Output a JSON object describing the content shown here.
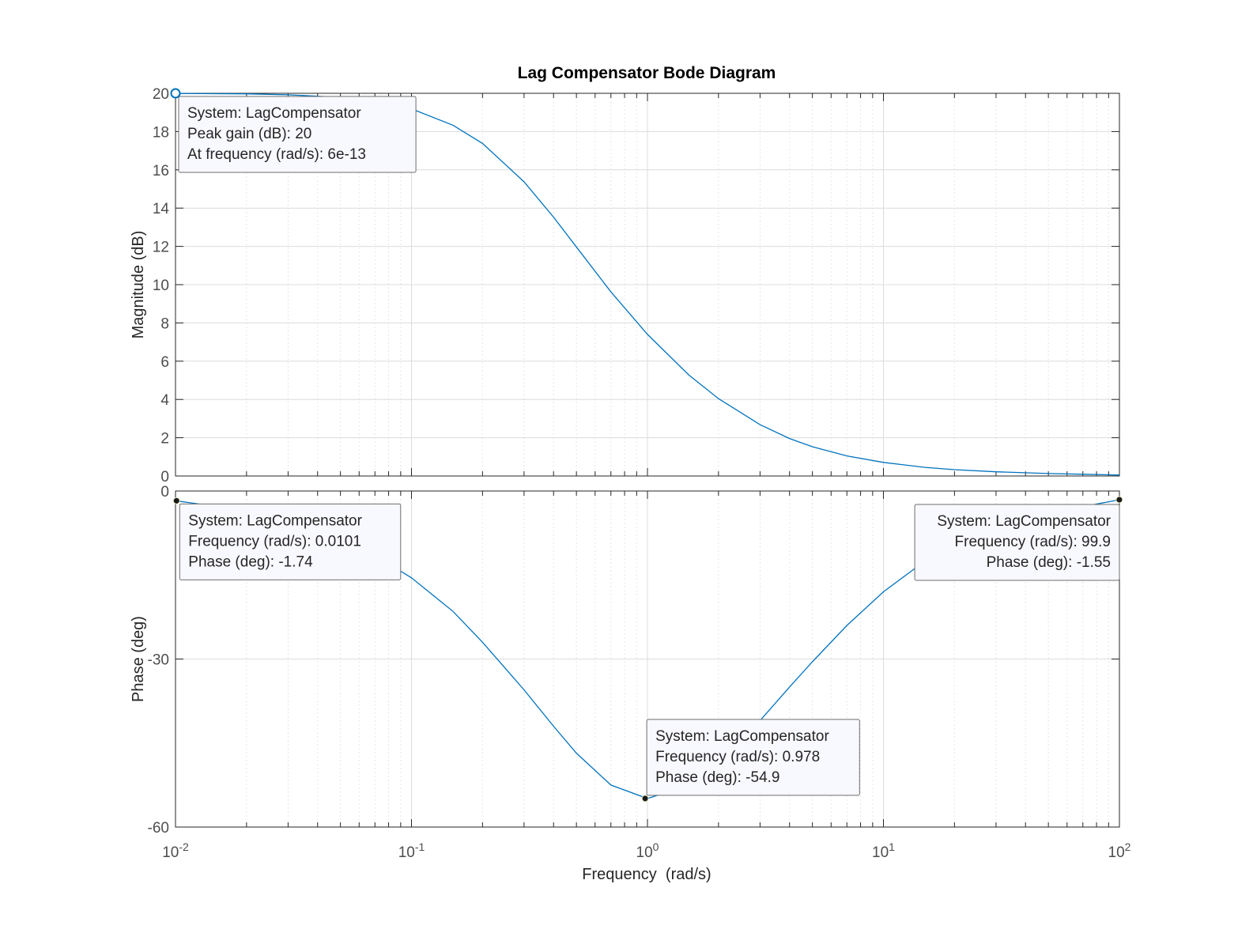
{
  "chart_data": {
    "type": "line",
    "title": "Lag Compensator Bode Diagram",
    "xlabel": "Frequency  (rad/s)",
    "xscale": "log",
    "xlim": [
      0.01,
      100
    ],
    "x_ticks": [
      {
        "base": "10",
        "exp": "-2"
      },
      {
        "base": "10",
        "exp": "-1"
      },
      {
        "base": "10",
        "exp": "0"
      },
      {
        "base": "10",
        "exp": "1"
      },
      {
        "base": "10",
        "exp": "2"
      }
    ],
    "grid": true,
    "line_color": "#0072bd",
    "panels": [
      {
        "name": "magnitude",
        "ylabel": "Magnitude (dB)",
        "ylim": [
          0,
          20
        ],
        "yticks": [
          "0",
          "2",
          "4",
          "6",
          "8",
          "10",
          "12",
          "14",
          "16",
          "18",
          "20"
        ],
        "series": [
          {
            "x": [
              0.01,
              0.02,
              0.03,
              0.05,
              0.07,
              0.1,
              0.15,
              0.2,
              0.3,
              0.4,
              0.5,
              0.7,
              1,
              1.5,
              2,
              3,
              4,
              5,
              7,
              10,
              15,
              20,
              30,
              50,
              70,
              100
            ],
            "y": [
              19.99,
              19.97,
              19.92,
              19.79,
              19.59,
              19.19,
              18.33,
              17.38,
              15.37,
              13.53,
              11.97,
              9.62,
              7.4,
              5.27,
              4.04,
              2.68,
              1.96,
              1.53,
              1.05,
              0.71,
              0.45,
              0.33,
              0.22,
              0.13,
              0.09,
              0.05
            ]
          }
        ]
      },
      {
        "name": "phase",
        "ylabel": "Phase (deg)",
        "ylim": [
          -60,
          0
        ],
        "yticks": [
          "-60",
          "-30",
          "0"
        ],
        "series": [
          {
            "x": [
              0.01,
              0.02,
              0.03,
              0.05,
              0.07,
              0.1,
              0.15,
              0.2,
              0.3,
              0.4,
              0.5,
              0.7,
              1,
              1.5,
              2,
              3,
              4,
              5,
              7,
              10,
              15,
              20,
              30,
              50,
              70,
              100
            ],
            "y": [
              -1.74,
              -3.5,
              -5.2,
              -8.5,
              -11.5,
              -15.5,
              -21.5,
              -27,
              -35.5,
              -42,
              -46.8,
              -52.5,
              -54.9,
              -52.5,
              -48.5,
              -41,
              -35,
              -30.5,
              -24,
              -18,
              -12.5,
              -9.5,
              -6.5,
              -3.9,
              -2.8,
              -1.55
            ]
          }
        ]
      }
    ],
    "datatips": [
      {
        "panel": "magnitude",
        "x": 0.01,
        "y": 20,
        "marker": "open",
        "align": "left",
        "lines": [
          "System: LagCompensator",
          "Peak gain (dB): 20",
          "At frequency (rad/s): 6e-13"
        ]
      },
      {
        "panel": "phase",
        "x": 0.0101,
        "y": -1.74,
        "marker": "filled",
        "align": "left",
        "lines": [
          "System: LagCompensator",
          "Frequency (rad/s): 0.0101",
          "Phase (deg): -1.74"
        ]
      },
      {
        "panel": "phase",
        "x": 0.978,
        "y": -54.9,
        "marker": "filled",
        "align": "left",
        "lines": [
          "System: LagCompensator",
          "Frequency (rad/s): 0.978",
          "Phase (deg): -54.9"
        ]
      },
      {
        "panel": "phase",
        "x": 99.9,
        "y": -1.55,
        "marker": "filled",
        "align": "right",
        "lines": [
          "System: LagCompensator",
          "Frequency (rad/s): 99.9",
          "Phase (deg): -1.55"
        ]
      }
    ]
  }
}
